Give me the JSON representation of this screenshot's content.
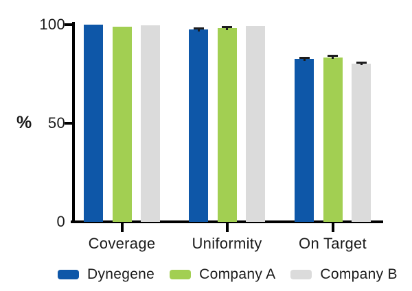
{
  "chart_data": {
    "type": "bar",
    "categories": [
      "Coverage",
      "Uniformity",
      "On Target"
    ],
    "series": [
      {
        "name": "Dynegene",
        "color": "#0E57A8",
        "values": [
          100,
          97.5,
          82.5
        ],
        "errors": [
          0,
          0.7,
          0.8
        ]
      },
      {
        "name": "Company A",
        "color": "#A2CF52",
        "values": [
          99,
          98.2,
          83.5
        ],
        "errors": [
          0,
          0.6,
          0.7
        ]
      },
      {
        "name": "Company B",
        "color": "#DBDBDB",
        "values": [
          99.8,
          99.3,
          80.3
        ],
        "errors": [
          0,
          0,
          0.6
        ]
      }
    ],
    "title": "",
    "xlabel": "",
    "ylabel": "%",
    "yticks": [
      0,
      50,
      100
    ],
    "ylim": [
      0,
      100
    ],
    "grid": false,
    "legend_position": "bottom",
    "error_bar_color": "#1c1c1e",
    "axis_color": "#000000",
    "text_color": "#1a1a1a"
  }
}
